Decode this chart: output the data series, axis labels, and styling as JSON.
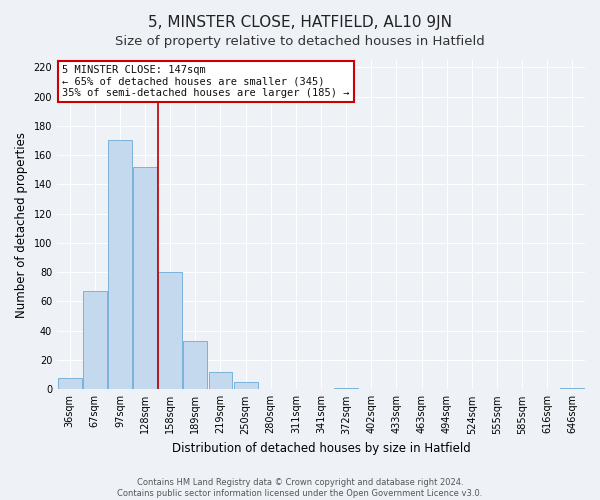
{
  "title": "5, MINSTER CLOSE, HATFIELD, AL10 9JN",
  "subtitle": "Size of property relative to detached houses in Hatfield",
  "xlabel": "Distribution of detached houses by size in Hatfield",
  "ylabel": "Number of detached properties",
  "categories": [
    "36sqm",
    "67sqm",
    "97sqm",
    "128sqm",
    "158sqm",
    "189sqm",
    "219sqm",
    "250sqm",
    "280sqm",
    "311sqm",
    "341sqm",
    "372sqm",
    "402sqm",
    "433sqm",
    "463sqm",
    "494sqm",
    "524sqm",
    "555sqm",
    "585sqm",
    "616sqm",
    "646sqm"
  ],
  "values": [
    8,
    67,
    170,
    152,
    80,
    33,
    12,
    5,
    0,
    0,
    0,
    1,
    0,
    0,
    0,
    0,
    0,
    0,
    0,
    0,
    1
  ],
  "bar_color": "#c5d9ee",
  "bar_edge_color": "#6aaad4",
  "red_line_index": 4,
  "annotation_text": "5 MINSTER CLOSE: 147sqm\n← 65% of detached houses are smaller (345)\n35% of semi-detached houses are larger (185) →",
  "annotation_box_facecolor": "#ffffff",
  "annotation_box_edgecolor": "#cc0000",
  "ylim": [
    0,
    225
  ],
  "yticks": [
    0,
    20,
    40,
    60,
    80,
    100,
    120,
    140,
    160,
    180,
    200,
    220
  ],
  "title_fontsize": 11,
  "subtitle_fontsize": 9.5,
  "axis_label_fontsize": 8.5,
  "tick_fontsize": 7,
  "annotation_fontsize": 7.5,
  "footer_text": "Contains HM Land Registry data © Crown copyright and database right 2024.\nContains public sector information licensed under the Open Government Licence v3.0.",
  "footer_fontsize": 6,
  "background_color": "#eef2f7",
  "plot_bg_color": "#eef2f7",
  "grid_color": "#ffffff"
}
